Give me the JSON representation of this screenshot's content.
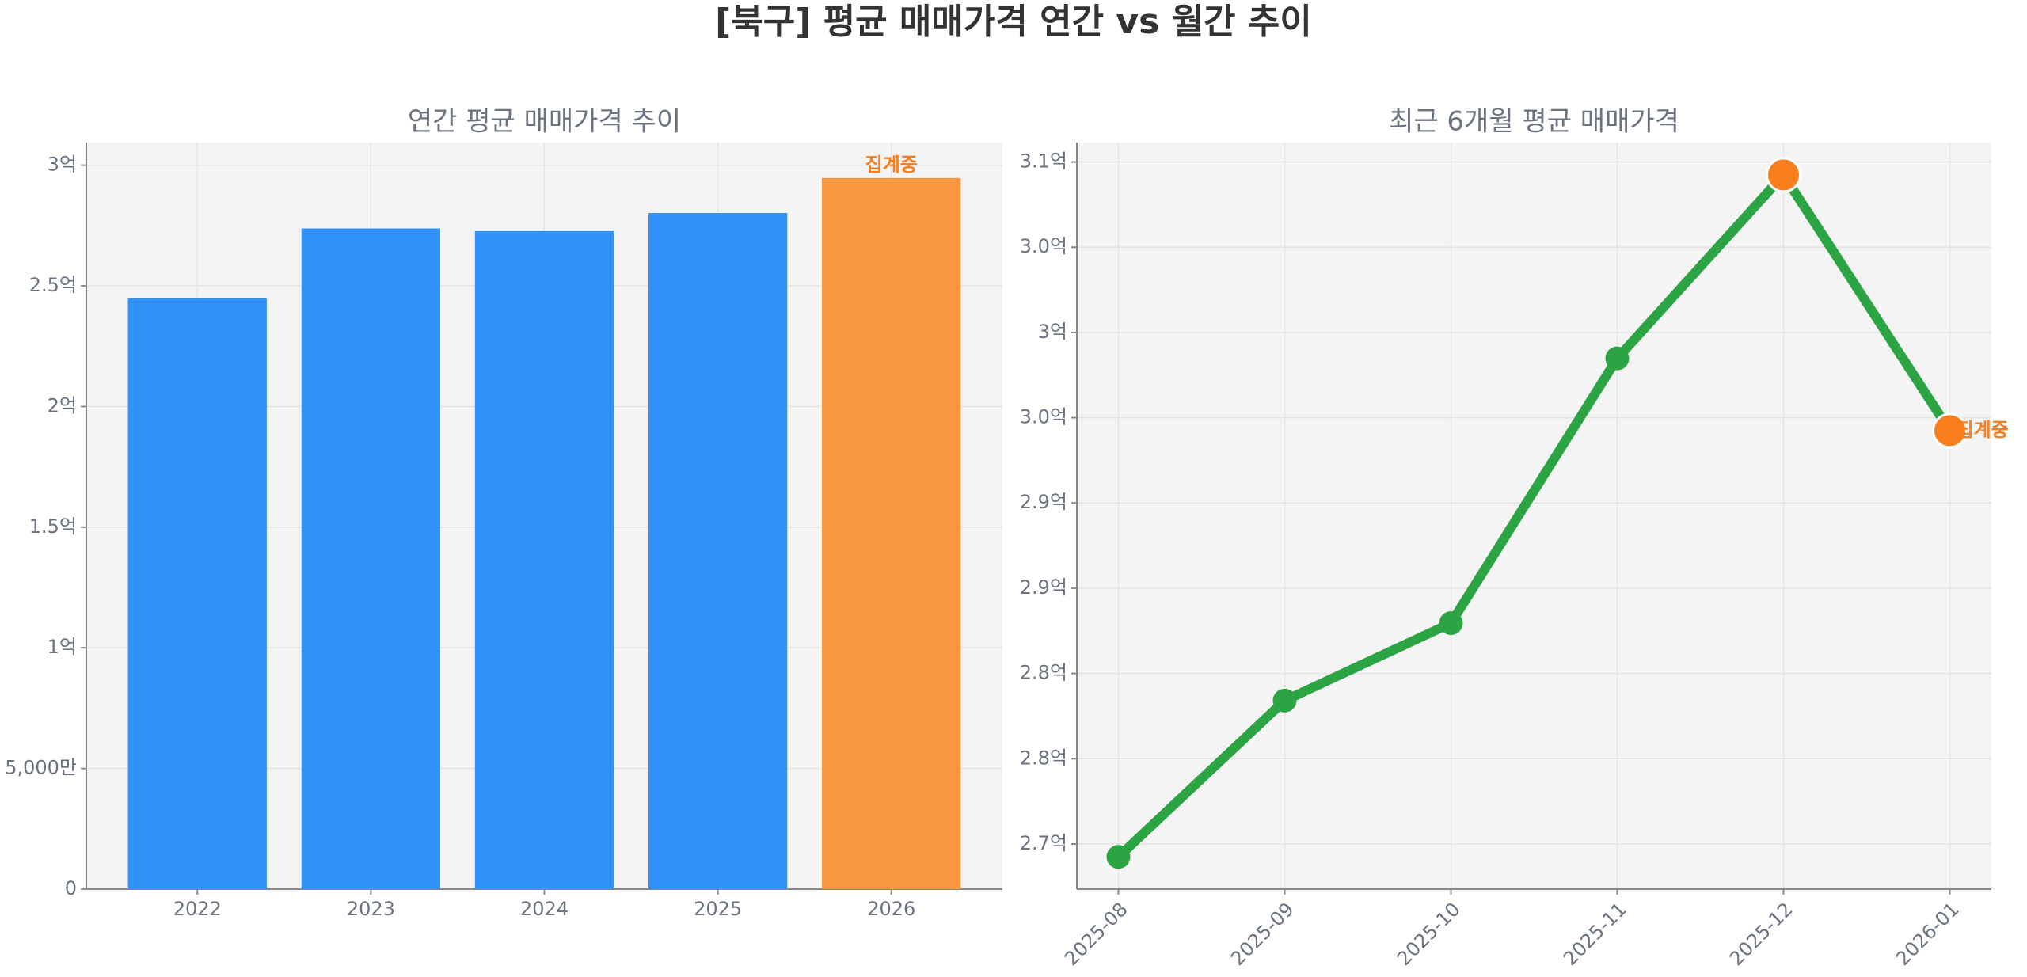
{
  "title": "[북구] 평균 매매가격 연간 vs 월간 추이",
  "chart_data": [
    {
      "type": "bar",
      "title": "연간 평균 매매가격 추이",
      "categories": [
        "2022",
        "2023",
        "2024",
        "2025",
        "2026"
      ],
      "values": [
        244900000,
        273800000,
        272700000,
        280200000,
        294700000
      ],
      "colors": [
        "#3192f9",
        "#3192f9",
        "#3192f9",
        "#3192f9",
        "#f9973f"
      ],
      "ylim": [
        0,
        309400000
      ],
      "yticks": [
        0,
        {
          "value": 50000000,
          "label": "5,000만"
        },
        {
          "value": 100000000,
          "label": "1억"
        },
        {
          "value": 150000000,
          "label": "1.5억"
        },
        {
          "value": 200000000,
          "label": "2억"
        },
        {
          "value": 250000000,
          "label": "2.5억"
        },
        {
          "value": 300000000,
          "label": "3억"
        }
      ],
      "grid": true,
      "annotation": "집계중",
      "annotation_color": "#f97f1e"
    },
    {
      "type": "line",
      "title": "최근 6개월 평균 매매가격",
      "categories": [
        "2025-08",
        "2025-09",
        "2025-10",
        "2025-11",
        "2025-12",
        "2026-01"
      ],
      "values": [
        269240000,
        278410000,
        282950000,
        298480000,
        309240000,
        294240000
      ],
      "color": "#2ca444",
      "marker_colors": [
        "#2ca444",
        "#2ca444",
        "#2ca444",
        "#2ca444",
        "#f97f1e",
        "#f97f1e"
      ],
      "ylim": [
        267350000,
        311140000
      ],
      "yticks": [
        {
          "value": 270000000,
          "label": "2.7억"
        },
        {
          "value": 275000000,
          "label": "2.8억"
        },
        {
          "value": 280000000,
          "label": "2.8억"
        },
        {
          "value": 285000000,
          "label": "2.9억"
        },
        {
          "value": 290000000,
          "label": "2.9억"
        },
        {
          "value": 295000000,
          "label": "3.0억"
        },
        {
          "value": 300000000,
          "label": "3억"
        },
        {
          "value": 305000000,
          "label": "3.0억"
        },
        {
          "value": 310000000,
          "label": "3.1억"
        }
      ],
      "grid": true,
      "annotation": "집계중",
      "annotation_color": "#f97f1e"
    }
  ]
}
